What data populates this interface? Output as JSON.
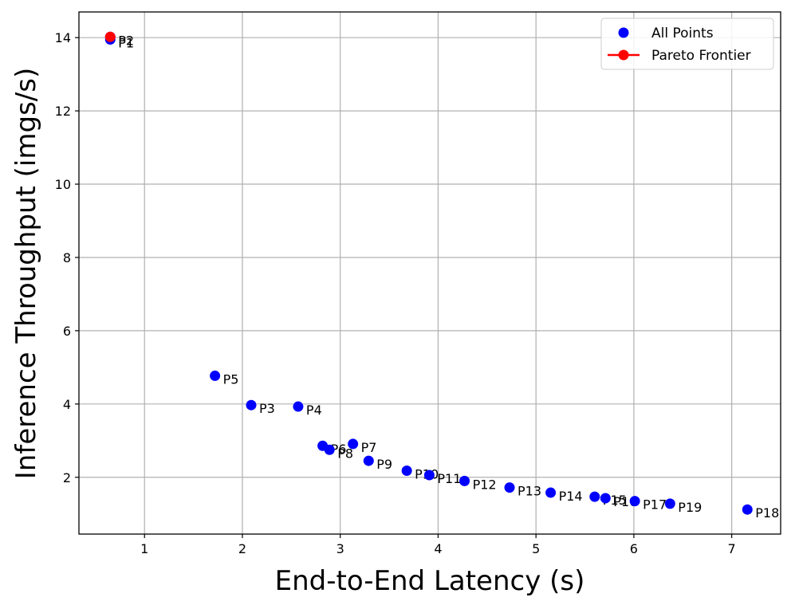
{
  "chart_data": {
    "type": "scatter",
    "xlabel": "End-to-End Latency (s)",
    "ylabel": "Inference Throughput (imgs/s)",
    "xlim": [
      0.33,
      7.5
    ],
    "ylim": [
      0.45,
      14.7
    ],
    "xticks": [
      1,
      2,
      3,
      4,
      5,
      6,
      7
    ],
    "yticks": [
      2,
      4,
      6,
      8,
      10,
      12,
      14
    ],
    "grid": true,
    "legend_position": "top-right",
    "series": [
      {
        "name": "All Points",
        "color": "#0000ff",
        "points": [
          {
            "label": "P1",
            "x": 0.65,
            "y": 13.95
          },
          {
            "label": "P2",
            "x": 0.65,
            "y": 14.02
          },
          {
            "label": "P3",
            "x": 2.09,
            "y": 3.97
          },
          {
            "label": "P4",
            "x": 2.57,
            "y": 3.93
          },
          {
            "label": "P5",
            "x": 1.72,
            "y": 4.77
          },
          {
            "label": "P6",
            "x": 2.82,
            "y": 2.86
          },
          {
            "label": "P7",
            "x": 3.13,
            "y": 2.91
          },
          {
            "label": "P8",
            "x": 2.89,
            "y": 2.75
          },
          {
            "label": "P9",
            "x": 3.29,
            "y": 2.45
          },
          {
            "label": "P10",
            "x": 3.68,
            "y": 2.18
          },
          {
            "label": "P11",
            "x": 3.91,
            "y": 2.06
          },
          {
            "label": "P12",
            "x": 4.27,
            "y": 1.9
          },
          {
            "label": "P13",
            "x": 4.73,
            "y": 1.72
          },
          {
            "label": "P14",
            "x": 5.15,
            "y": 1.58
          },
          {
            "label": "P15",
            "x": 5.6,
            "y": 1.47
          },
          {
            "label": "P16",
            "x": 5.71,
            "y": 1.43
          },
          {
            "label": "P17",
            "x": 6.01,
            "y": 1.35
          },
          {
            "label": "P18",
            "x": 7.16,
            "y": 1.12
          },
          {
            "label": "P19",
            "x": 6.37,
            "y": 1.28
          }
        ]
      },
      {
        "name": "Pareto Frontier",
        "color": "#ff0000",
        "points": [
          {
            "label": "P2",
            "x": 0.65,
            "y": 14.02
          }
        ]
      }
    ]
  }
}
